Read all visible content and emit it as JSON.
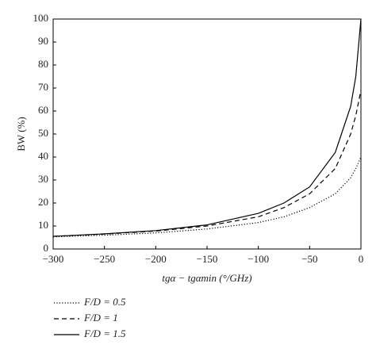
{
  "chart_data": {
    "type": "line",
    "x_label": "tgα − tgαmin (°/GHz)",
    "y_label": "BW (%)",
    "x": [
      -300,
      -250,
      -200,
      -150,
      -100,
      -75,
      -50,
      -25,
      -10,
      -5,
      0
    ],
    "series": [
      {
        "name": "F/D = 0.5",
        "color": "#000000",
        "linestyle": "dotted",
        "values": [
          5.3,
          6,
          7,
          8.7,
          11.5,
          14,
          18,
          24,
          31,
          35,
          40
        ]
      },
      {
        "name": "F/D = 1",
        "color": "#000000",
        "linestyle": "dashed",
        "values": [
          5.5,
          6.5,
          7.8,
          10,
          14,
          18,
          24,
          35,
          50,
          58,
          69
        ]
      },
      {
        "name": "F/D = 1.5",
        "color": "#000000",
        "linestyle": "solid",
        "values": [
          5.5,
          6.6,
          8,
          10.5,
          15.5,
          20,
          27,
          42,
          62,
          75,
          100
        ]
      }
    ],
    "xlim": [
      -300,
      0
    ],
    "ylim": [
      0,
      100
    ],
    "xticks": [
      {
        "value": -300,
        "label": "−300"
      },
      {
        "value": -250,
        "label": "−250"
      },
      {
        "value": -200,
        "label": "−200"
      },
      {
        "value": -150,
        "label": "−150"
      },
      {
        "value": -100,
        "label": "−100"
      },
      {
        "value": -50,
        "label": "−50"
      },
      0
    ],
    "yticks": [
      0,
      10,
      20,
      30,
      40,
      50,
      60,
      70,
      80,
      90,
      100
    ],
    "legend": "bottom-left"
  }
}
